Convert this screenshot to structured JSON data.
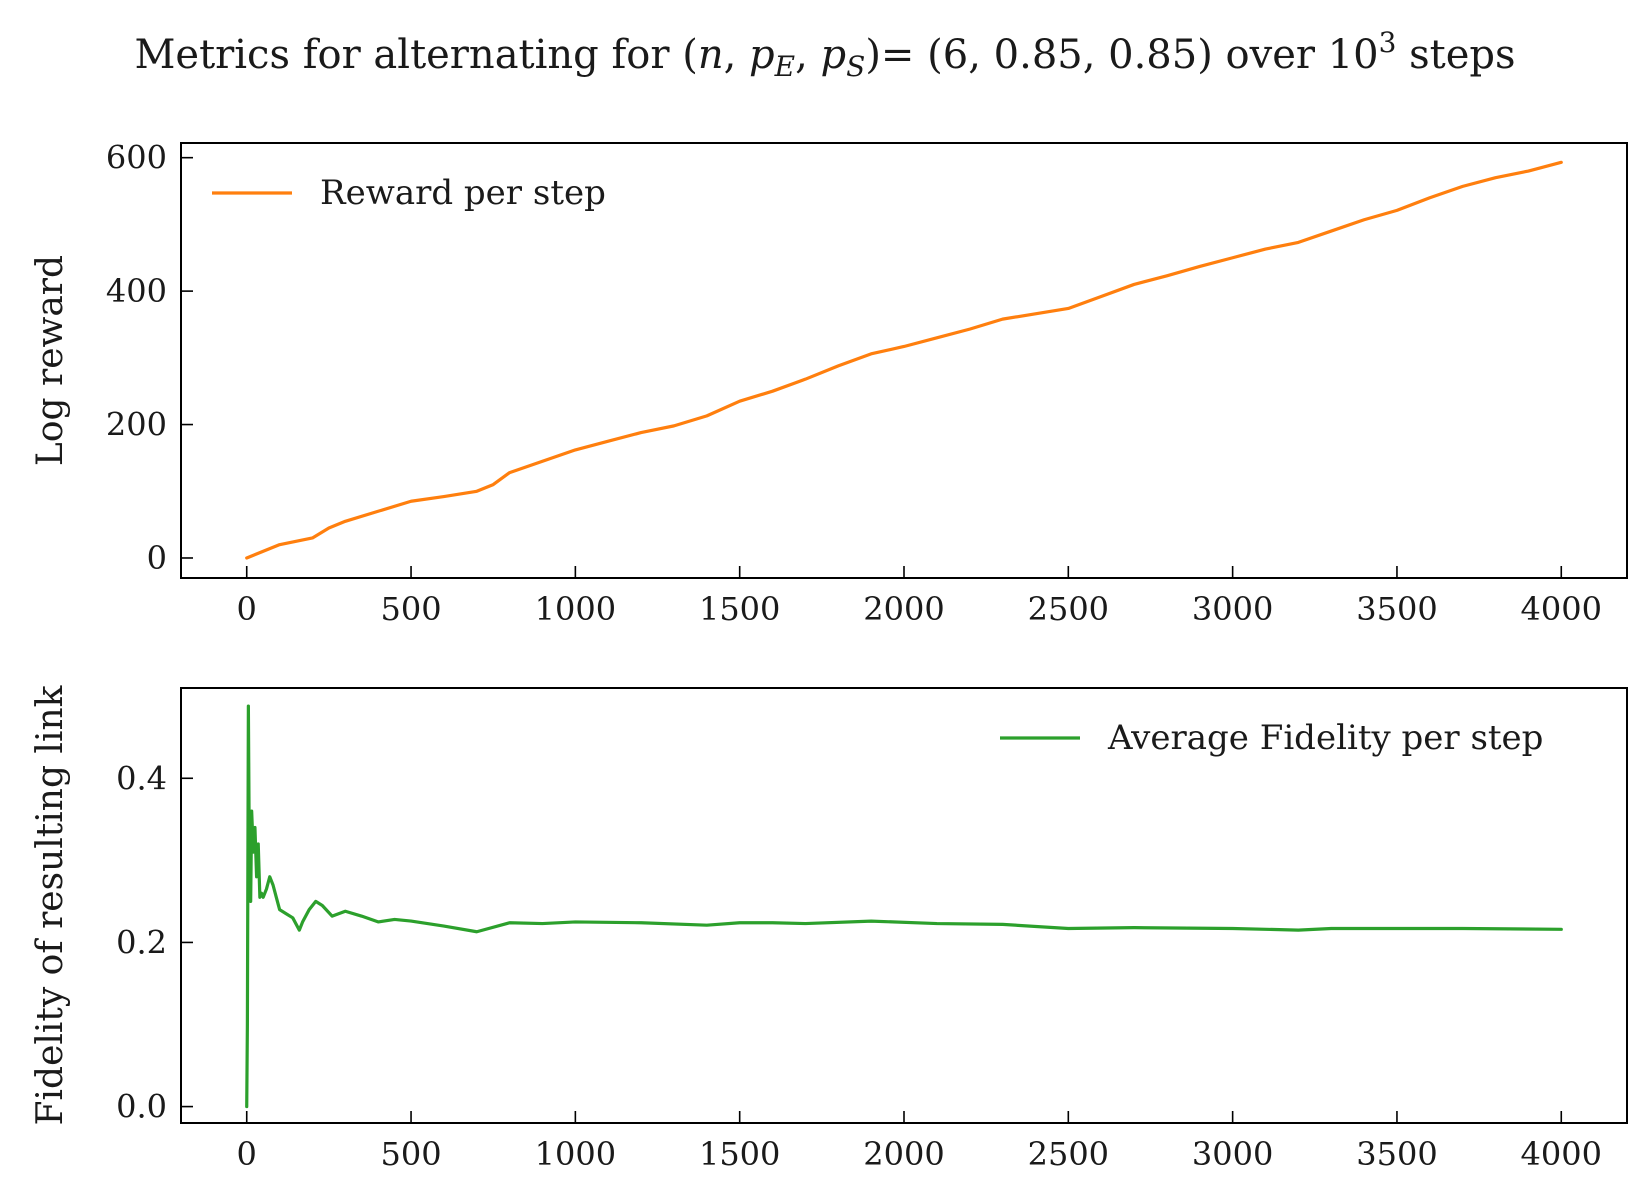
{
  "title": {
    "prefix": "Metrics for alternating for (",
    "sym_n": "n",
    "comma1": ", ",
    "sym_p1": "p",
    "sub1": "E",
    "comma2": ", ",
    "sym_p2": "p",
    "sub2": "S",
    "middle": ")= (6, 0.85, 0.85) over 10",
    "sup": "3",
    "suffix": " steps"
  },
  "chart_data": [
    {
      "type": "line",
      "ylabel": "Log reward",
      "xlim": [
        -200,
        4200
      ],
      "ylim": [
        -30,
        622
      ],
      "xticks": [
        0,
        500,
        1000,
        1500,
        2000,
        2500,
        3000,
        3500,
        4000
      ],
      "yticks": [
        0,
        200,
        400,
        600
      ],
      "legend_position": "upper-left",
      "series": [
        {
          "name": "Reward per step",
          "color": "#ff7f0e",
          "x": [
            0,
            100,
            200,
            250,
            300,
            400,
            500,
            600,
            700,
            750,
            800,
            900,
            1000,
            1100,
            1200,
            1300,
            1400,
            1500,
            1600,
            1700,
            1800,
            1900,
            2000,
            2100,
            2200,
            2300,
            2400,
            2500,
            2600,
            2700,
            2800,
            2900,
            3000,
            3100,
            3200,
            3300,
            3400,
            3500,
            3600,
            3700,
            3800,
            3900,
            4000
          ],
          "values": [
            0,
            20,
            30,
            45,
            55,
            70,
            85,
            92,
            100,
            110,
            128,
            145,
            162,
            175,
            188,
            198,
            213,
            235,
            250,
            268,
            288,
            306,
            317,
            330,
            343,
            358,
            366,
            374,
            392,
            410,
            423,
            437,
            450,
            463,
            473,
            490,
            507,
            521,
            540,
            557,
            570,
            580,
            593
          ]
        }
      ]
    },
    {
      "type": "line",
      "ylabel": "Fidelity of resulting link",
      "xlim": [
        -200,
        4200
      ],
      "ylim": [
        -0.02,
        0.51
      ],
      "xticks": [
        0,
        500,
        1000,
        1500,
        2000,
        2500,
        3000,
        3500,
        4000
      ],
      "yticks": [
        0.0,
        0.2,
        0.4
      ],
      "yticks_decimals": 1,
      "legend_position": "upper-right",
      "series": [
        {
          "name": "Average Fidelity per step",
          "color": "#2ca02c",
          "x": [
            0,
            2,
            5,
            8,
            12,
            15,
            20,
            25,
            30,
            35,
            40,
            45,
            50,
            60,
            70,
            80,
            90,
            100,
            120,
            140,
            160,
            170,
            190,
            210,
            230,
            260,
            300,
            350,
            400,
            450,
            500,
            600,
            700,
            800,
            900,
            1000,
            1200,
            1400,
            1500,
            1600,
            1700,
            1900,
            2100,
            2300,
            2500,
            2700,
            3000,
            3200,
            3300,
            3500,
            3700,
            4000
          ],
          "values": [
            0.0,
            0.1,
            0.488,
            0.3,
            0.25,
            0.36,
            0.31,
            0.34,
            0.28,
            0.32,
            0.255,
            0.26,
            0.255,
            0.265,
            0.28,
            0.27,
            0.255,
            0.24,
            0.235,
            0.23,
            0.215,
            0.225,
            0.24,
            0.25,
            0.245,
            0.232,
            0.238,
            0.232,
            0.225,
            0.228,
            0.226,
            0.22,
            0.213,
            0.224,
            0.223,
            0.225,
            0.224,
            0.221,
            0.224,
            0.224,
            0.223,
            0.226,
            0.223,
            0.222,
            0.217,
            0.218,
            0.217,
            0.215,
            0.217,
            0.217,
            0.217,
            0.216
          ]
        }
      ]
    }
  ]
}
